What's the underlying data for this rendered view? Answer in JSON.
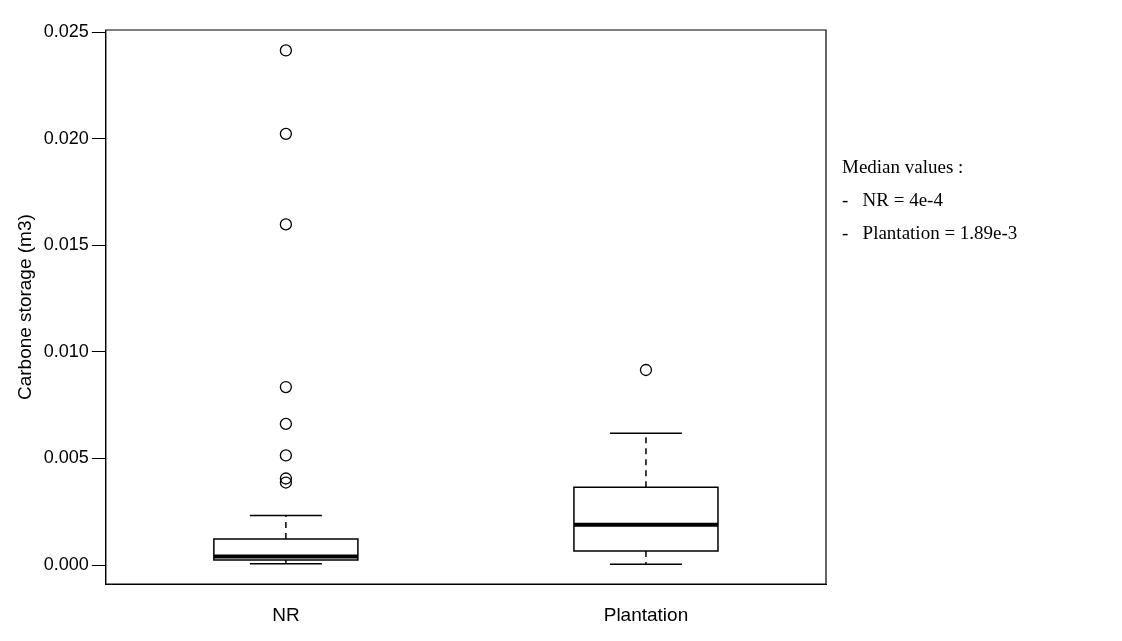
{
  "chart_data": {
    "type": "box",
    "ylabel": "Carbone storage (m3)",
    "categories": [
      "NR",
      "Plantation"
    ],
    "boxes": [
      {
        "low": 6e-05,
        "q1": 0.00024,
        "median": 0.0004,
        "q3": 0.00122,
        "high": 0.00232,
        "outliers": [
          0.00387,
          0.00406,
          0.00514,
          0.00662,
          0.00835,
          0.01598,
          0.02023,
          0.02414
        ]
      },
      {
        "low": 4e-05,
        "q1": 0.00066,
        "median": 0.00189,
        "q3": 0.00365,
        "high": 0.00618,
        "outliers": [
          0.00915
        ]
      }
    ],
    "color": "#000000",
    "ylim": [
      -0.0009,
      0.0251
    ],
    "yticks": [
      {
        "value": 0,
        "label": "0.000"
      },
      0.005,
      {
        "value": 0.01,
        "label": "0.010"
      },
      0.015,
      {
        "value": 0.02,
        "label": "0.020"
      },
      0.025
    ],
    "grid": false,
    "legend": false,
    "marker": "circle",
    "annotations": [
      "Median values :",
      "-   NR = 4e-4",
      "-   Plantation = 1.89e-3"
    ]
  }
}
